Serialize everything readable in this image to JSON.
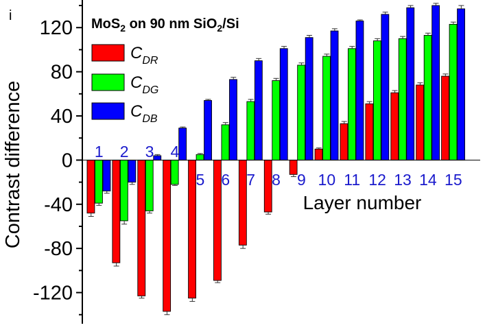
{
  "panel_label": "i",
  "chart_data": {
    "type": "bar",
    "title_parts": [
      {
        "text": "MoS",
        "sub": false
      },
      {
        "text": "2",
        "sub": true
      },
      {
        "text": " on 90 nm SiO",
        "sub": false
      },
      {
        "text": "2",
        "sub": true
      },
      {
        "text": "/Si",
        "sub": false
      }
    ],
    "xlabel": "Layer number",
    "ylabel": "Contrast difference",
    "categories": [
      "1",
      "2",
      "3",
      "4",
      "5",
      "6",
      "7",
      "8",
      "9",
      "10",
      "11",
      "12",
      "13",
      "14",
      "15"
    ],
    "ylim": [
      -147,
      145
    ],
    "yticks": [
      -120,
      -80,
      -40,
      0,
      40,
      80,
      120
    ],
    "ytick_labels": [
      "-120",
      "-80",
      "-40",
      "0",
      "40",
      "80",
      "120"
    ],
    "category_label_color": "#1a1acc",
    "legend_position": "top-left",
    "grid": false,
    "series": [
      {
        "name_main": "C",
        "name_sub": "DR",
        "color": "#ff0000",
        "values": [
          -48,
          -93,
          -123,
          -137,
          -125,
          -109,
          -77,
          -47,
          -13,
          10,
          33,
          51,
          61,
          68,
          76
        ],
        "errors": [
          3,
          3,
          2,
          3,
          3,
          2,
          3,
          2,
          2,
          1,
          2,
          2,
          2,
          2,
          2
        ]
      },
      {
        "name_main": "C",
        "name_sub": "DG",
        "color": "#00ff00",
        "values": [
          -39,
          -55,
          -46,
          -22,
          5,
          32,
          53,
          72,
          86,
          94,
          101,
          108,
          110,
          113,
          123
        ],
        "errors": [
          2,
          3,
          2,
          1,
          1,
          2,
          2,
          2,
          2,
          2,
          2,
          2,
          2,
          2,
          2
        ]
      },
      {
        "name_main": "C",
        "name_sub": "DB",
        "color": "#0000ff",
        "values": [
          -28,
          -20,
          4,
          29,
          54,
          73,
          90,
          101,
          111,
          117,
          126,
          132,
          138,
          140,
          137
        ],
        "errors": [
          2,
          2,
          1,
          1,
          1,
          2,
          2,
          2,
          2,
          2,
          1,
          2,
          2,
          2,
          3
        ]
      }
    ]
  }
}
